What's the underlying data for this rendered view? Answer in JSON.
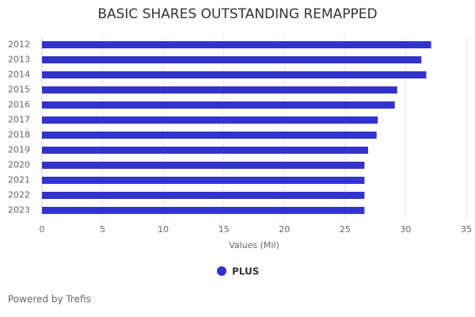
{
  "chart_data": {
    "type": "hbar",
    "title": "BASIC SHARES OUTSTANDING REMAPPED",
    "categories": [
      "2012",
      "2013",
      "2014",
      "2015",
      "2016",
      "2017",
      "2018",
      "2019",
      "2020",
      "2021",
      "2022",
      "2023"
    ],
    "series": [
      {
        "name": "PLUS",
        "color": "#3333cc",
        "values": [
          32.1,
          31.3,
          31.7,
          29.3,
          29.1,
          27.7,
          27.6,
          26.9,
          26.6,
          26.6,
          26.6,
          26.6
        ]
      }
    ],
    "xlabel": "Values (Mil)",
    "xlim": [
      0,
      35
    ],
    "xticks": [
      0,
      5,
      10,
      15,
      20,
      25,
      30,
      35
    ],
    "grid": true,
    "legend": "bottom",
    "credit": "Powered by Trefis"
  }
}
